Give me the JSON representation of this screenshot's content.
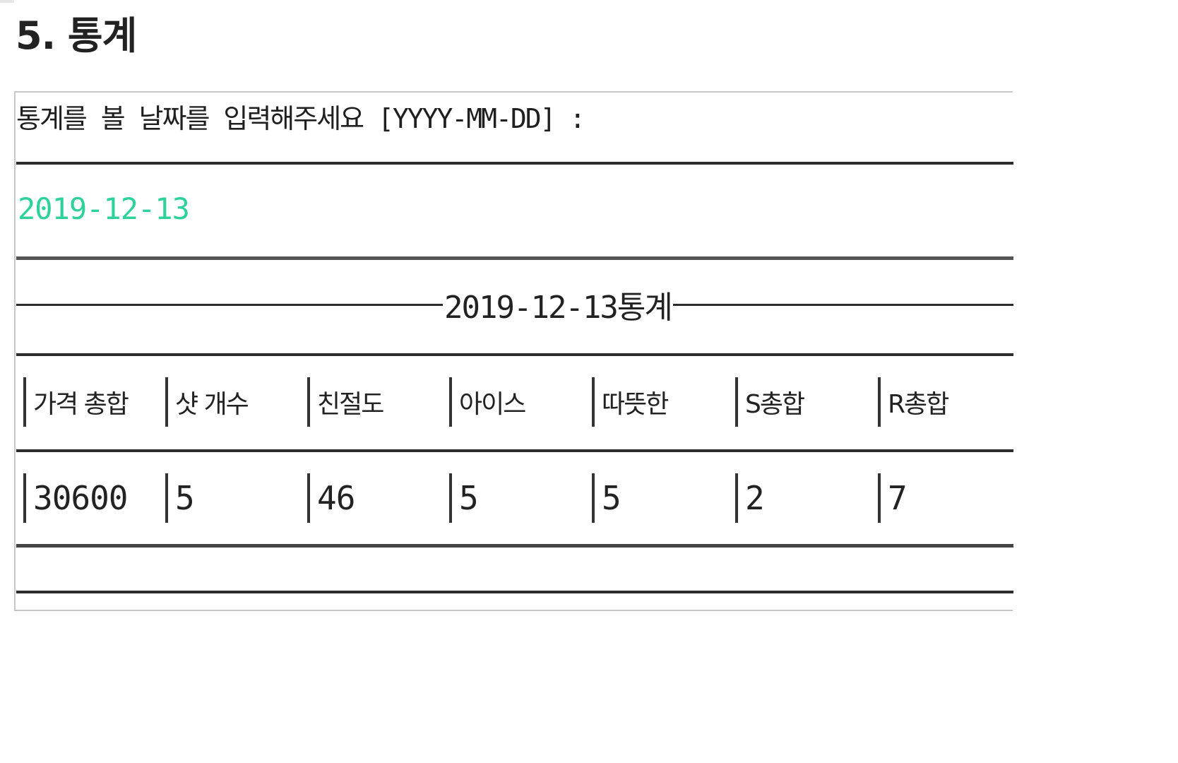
{
  "section": {
    "title": "5. 통계"
  },
  "console": {
    "prompt": "통계를 볼 날짜를 입력해주세요 [YYYY-MM-DD] :",
    "input_value": "2019-12-13",
    "input_color": "#2ed19a",
    "stats_header": "2019-12-13통계",
    "table": {
      "columns": [
        "가격 총합",
        "샷 개수",
        "친절도",
        "아이스",
        "따뜻한",
        "S총합",
        "R총합"
      ],
      "values": [
        "30600",
        "5",
        "46",
        "5",
        "5",
        "2",
        "7"
      ]
    }
  }
}
